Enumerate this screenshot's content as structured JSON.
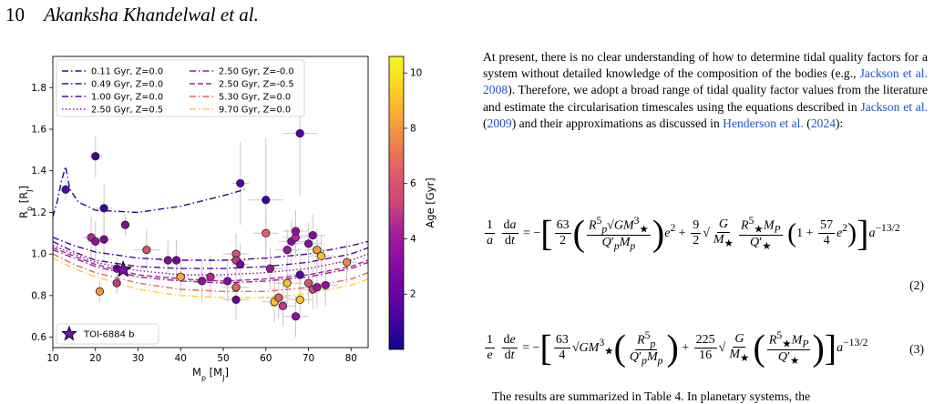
{
  "header": {
    "page_number": "10",
    "authors": "Akanksha Khandelwal et al."
  },
  "paragraph": {
    "part1": "At present, there is no clear understanding of how to determine tidal quality factors for a system without detailed knowledge of the composition of the bodies (e.g., ",
    "ref1": "Jackson et al. 2008",
    "part2": "). Therefore, we adopt a broad range of tidal quality factor values from the literature and estimate the circularisation timescales using the equations described in ",
    "ref2": "Jackson et al.",
    "part3": " (",
    "ref2_year": "2009",
    "part4": ") and their approximations as discussed in ",
    "ref3": "Henderson et al.",
    "part5": " (",
    "ref3_year": "2024",
    "part6": "):"
  },
  "equations": {
    "eq2_number": "(2)",
    "eq3_number": "(3)"
  },
  "bottom_text": "The results are summarized in Table 4. In planetary systems, the",
  "chart_data": {
    "type": "scatter",
    "xlabel": "M_p [M_J]",
    "ylabel": "R_p [R_J]",
    "xlim": [
      10,
      84
    ],
    "ylim": [
      0.55,
      1.95
    ],
    "xticks": [
      10,
      20,
      30,
      40,
      50,
      60,
      70,
      80
    ],
    "yticks": [
      0.6,
      0.8,
      1.0,
      1.2,
      1.4,
      1.6,
      1.8
    ],
    "colorbar": {
      "label": "Age [Gyr]",
      "min": 0,
      "max": 10.6,
      "ticks": [
        2,
        4,
        6,
        8,
        10
      ],
      "colormap": "plasma"
    },
    "legend_placement": "top-left",
    "series": [
      {
        "name": "0.11 Gyr, Z=0.0",
        "color": "#2c0594",
        "dash": "dashdot",
        "x": [
          10,
          11,
          12,
          13,
          14,
          16,
          20,
          30,
          40,
          50,
          55
        ],
        "y": [
          1.18,
          1.25,
          1.35,
          1.42,
          1.31,
          1.25,
          1.21,
          1.2,
          1.23,
          1.28,
          1.31
        ]
      },
      {
        "name": "0.49 Gyr, Z=0.0",
        "color": "#4903a0",
        "dash": "dashdot",
        "x": [
          10,
          15,
          20,
          30,
          40,
          50,
          60,
          70,
          80,
          84
        ],
        "y": [
          1.08,
          1.04,
          1.01,
          0.98,
          0.97,
          0.97,
          0.98,
          1.0,
          1.04,
          1.06
        ]
      },
      {
        "name": "1.00 Gyr, Z=0.0",
        "color": "#5a01a5",
        "dash": "dashdot",
        "x": [
          10,
          15,
          20,
          30,
          40,
          50,
          60,
          70,
          80,
          84
        ],
        "y": [
          1.06,
          1.01,
          0.97,
          0.94,
          0.93,
          0.93,
          0.94,
          0.96,
          1.0,
          1.03
        ]
      },
      {
        "name": "2.50 Gyr, Z=0.5",
        "color": "#8f0da4",
        "dash": "dotted",
        "x": [
          10,
          15,
          20,
          30,
          40,
          50,
          60,
          70,
          80,
          84
        ],
        "y": [
          1.04,
          1.0,
          0.96,
          0.92,
          0.9,
          0.9,
          0.91,
          0.93,
          0.97,
          1.0
        ]
      },
      {
        "name": "2.50 Gyr, Z=-0.0",
        "color": "#9c179e",
        "dash": "dashdot",
        "x": [
          10,
          15,
          20,
          30,
          40,
          50,
          60,
          70,
          80,
          84
        ],
        "y": [
          1.02,
          0.98,
          0.94,
          0.89,
          0.87,
          0.86,
          0.87,
          0.89,
          0.93,
          0.96
        ]
      },
      {
        "name": "2.50 Gyr, Z=-0.5",
        "color": "#a62098",
        "dash": "dashed",
        "x": [
          10,
          15,
          20,
          30,
          40,
          50,
          60,
          70,
          80,
          84
        ],
        "y": [
          1.03,
          0.99,
          0.95,
          0.9,
          0.88,
          0.87,
          0.88,
          0.9,
          0.94,
          0.97
        ]
      },
      {
        "name": "5.30 Gyr, Z=0.0",
        "color": "#e16462",
        "dash": "dashdot",
        "x": [
          10,
          15,
          20,
          30,
          40,
          50,
          60,
          70,
          80,
          84
        ],
        "y": [
          1.0,
          0.95,
          0.91,
          0.86,
          0.83,
          0.82,
          0.82,
          0.84,
          0.88,
          0.91
        ]
      },
      {
        "name": "9.70 Gyr, Z=0.0",
        "color": "#fcce25",
        "dash": "dashdot",
        "x": [
          10,
          15,
          20,
          30,
          40,
          50,
          60,
          70,
          80,
          84
        ],
        "y": [
          0.98,
          0.93,
          0.89,
          0.83,
          0.8,
          0.79,
          0.79,
          0.81,
          0.85,
          0.88
        ]
      }
    ],
    "points": [
      {
        "x": 13,
        "y": 1.31,
        "age": 1.5,
        "xerr": 1,
        "yerr": 0.05
      },
      {
        "x": 20,
        "y": 1.47,
        "age": 1.0,
        "xerr": 1.5,
        "yerr": 0.1
      },
      {
        "x": 22,
        "y": 1.22,
        "age": 1.0,
        "xerr": 2,
        "yerr": 0.12
      },
      {
        "x": 22,
        "y": 1.07,
        "age": 2.5,
        "xerr": 2,
        "yerr": 0.1
      },
      {
        "x": 27,
        "y": 1.14,
        "age": 3.0,
        "xerr": 1,
        "yerr": 0.05
      },
      {
        "x": 19,
        "y": 1.08,
        "age": 4.5,
        "xerr": 2,
        "yerr": 0.1
      },
      {
        "x": 20,
        "y": 1.06,
        "age": 3.5,
        "xerr": 2,
        "yerr": 0.1
      },
      {
        "x": 25,
        "y": 0.93,
        "age": 3.0,
        "xerr": 1,
        "yerr": 0.05
      },
      {
        "x": 21,
        "y": 0.82,
        "age": 8.0,
        "xerr": 1,
        "yerr": 0.05
      },
      {
        "x": 25,
        "y": 0.86,
        "age": 5.0,
        "xerr": 1,
        "yerr": 0.05
      },
      {
        "x": 32,
        "y": 1.02,
        "age": 6.0,
        "xerr": 3,
        "yerr": 0.1
      },
      {
        "x": 37,
        "y": 0.97,
        "age": 3.0,
        "xerr": 2,
        "yerr": 0.1
      },
      {
        "x": 39,
        "y": 0.97,
        "age": 2.5,
        "xerr": 2,
        "yerr": 0.1
      },
      {
        "x": 40,
        "y": 0.89,
        "age": 8.5,
        "xerr": 2,
        "yerr": 0.08
      },
      {
        "x": 45,
        "y": 0.87,
        "age": 3.5,
        "xerr": 3,
        "yerr": 0.1
      },
      {
        "x": 47,
        "y": 0.89,
        "age": 4.5,
        "xerr": 3,
        "yerr": 0.1
      },
      {
        "x": 51,
        "y": 0.87,
        "age": 3.0,
        "xerr": 3,
        "yerr": 0.1
      },
      {
        "x": 53,
        "y": 1.0,
        "age": 6.0,
        "xerr": 3,
        "yerr": 0.1
      },
      {
        "x": 53,
        "y": 0.97,
        "age": 5.0,
        "xerr": 3,
        "yerr": 0.1
      },
      {
        "x": 53,
        "y": 0.84,
        "age": 6.5,
        "xerr": 3,
        "yerr": 0.1
      },
      {
        "x": 53,
        "y": 0.78,
        "age": 2.0,
        "xerr": 3,
        "yerr": 0.1
      },
      {
        "x": 54,
        "y": 1.34,
        "age": 1.5,
        "xerr": 2,
        "yerr": 0.2
      },
      {
        "x": 54,
        "y": 0.95,
        "age": 2.5,
        "xerr": 2,
        "yerr": 0.1
      },
      {
        "x": 60,
        "y": 1.26,
        "age": 1.0,
        "xerr": 4,
        "yerr": 0.3
      },
      {
        "x": 60,
        "y": 1.1,
        "age": 6.5,
        "xerr": 3,
        "yerr": 0.1
      },
      {
        "x": 61,
        "y": 0.93,
        "age": 4.0,
        "xerr": 3,
        "yerr": 0.1
      },
      {
        "x": 62,
        "y": 0.77,
        "age": 9.0,
        "xerr": 3,
        "yerr": 0.1
      },
      {
        "x": 63,
        "y": 0.79,
        "age": 6.5,
        "xerr": 3,
        "yerr": 0.1
      },
      {
        "x": 64,
        "y": 0.75,
        "age": 5.0,
        "xerr": 3,
        "yerr": 0.1
      },
      {
        "x": 65,
        "y": 0.86,
        "age": 9.0,
        "xerr": 3,
        "yerr": 0.1
      },
      {
        "x": 65,
        "y": 1.02,
        "age": 4.0,
        "xerr": 3,
        "yerr": 0.1
      },
      {
        "x": 66,
        "y": 1.06,
        "age": 3.0,
        "xerr": 3,
        "yerr": 0.1
      },
      {
        "x": 67,
        "y": 1.08,
        "age": 4.5,
        "xerr": 3,
        "yerr": 0.1
      },
      {
        "x": 67,
        "y": 1.11,
        "age": 3.5,
        "xerr": 3,
        "yerr": 0.1
      },
      {
        "x": 68,
        "y": 1.58,
        "age": 1.5,
        "xerr": 4,
        "yerr": 0.3
      },
      {
        "x": 68,
        "y": 0.9,
        "age": 1.5,
        "xerr": 3,
        "yerr": 0.1
      },
      {
        "x": 68,
        "y": 0.78,
        "age": 9.0,
        "xerr": 3,
        "yerr": 0.1
      },
      {
        "x": 67,
        "y": 0.7,
        "age": 3.5,
        "xerr": 3,
        "yerr": 0.1
      },
      {
        "x": 70,
        "y": 1.05,
        "age": 3.0,
        "xerr": 3,
        "yerr": 0.1
      },
      {
        "x": 70,
        "y": 0.86,
        "age": 6.0,
        "xerr": 3,
        "yerr": 0.1
      },
      {
        "x": 71,
        "y": 1.09,
        "age": 3.0,
        "xerr": 3,
        "yerr": 0.1
      },
      {
        "x": 71,
        "y": 0.83,
        "age": 5.5,
        "xerr": 3,
        "yerr": 0.1
      },
      {
        "x": 72,
        "y": 0.84,
        "age": 4.0,
        "xerr": 3,
        "yerr": 0.1
      },
      {
        "x": 72,
        "y": 1.02,
        "age": 8.0,
        "xerr": 3,
        "yerr": 0.1
      },
      {
        "x": 73,
        "y": 0.99,
        "age": 9.0,
        "xerr": 3,
        "yerr": 0.1
      },
      {
        "x": 74,
        "y": 0.85,
        "age": 3.5,
        "xerr": 3,
        "yerr": 0.1
      },
      {
        "x": 79,
        "y": 0.96,
        "age": 7.5,
        "xerr": 3,
        "yerr": 0.1
      }
    ],
    "star": {
      "x": 26.5,
      "y": 0.925,
      "label": "TOI-6884 b",
      "color": "#7a0cb0"
    }
  }
}
